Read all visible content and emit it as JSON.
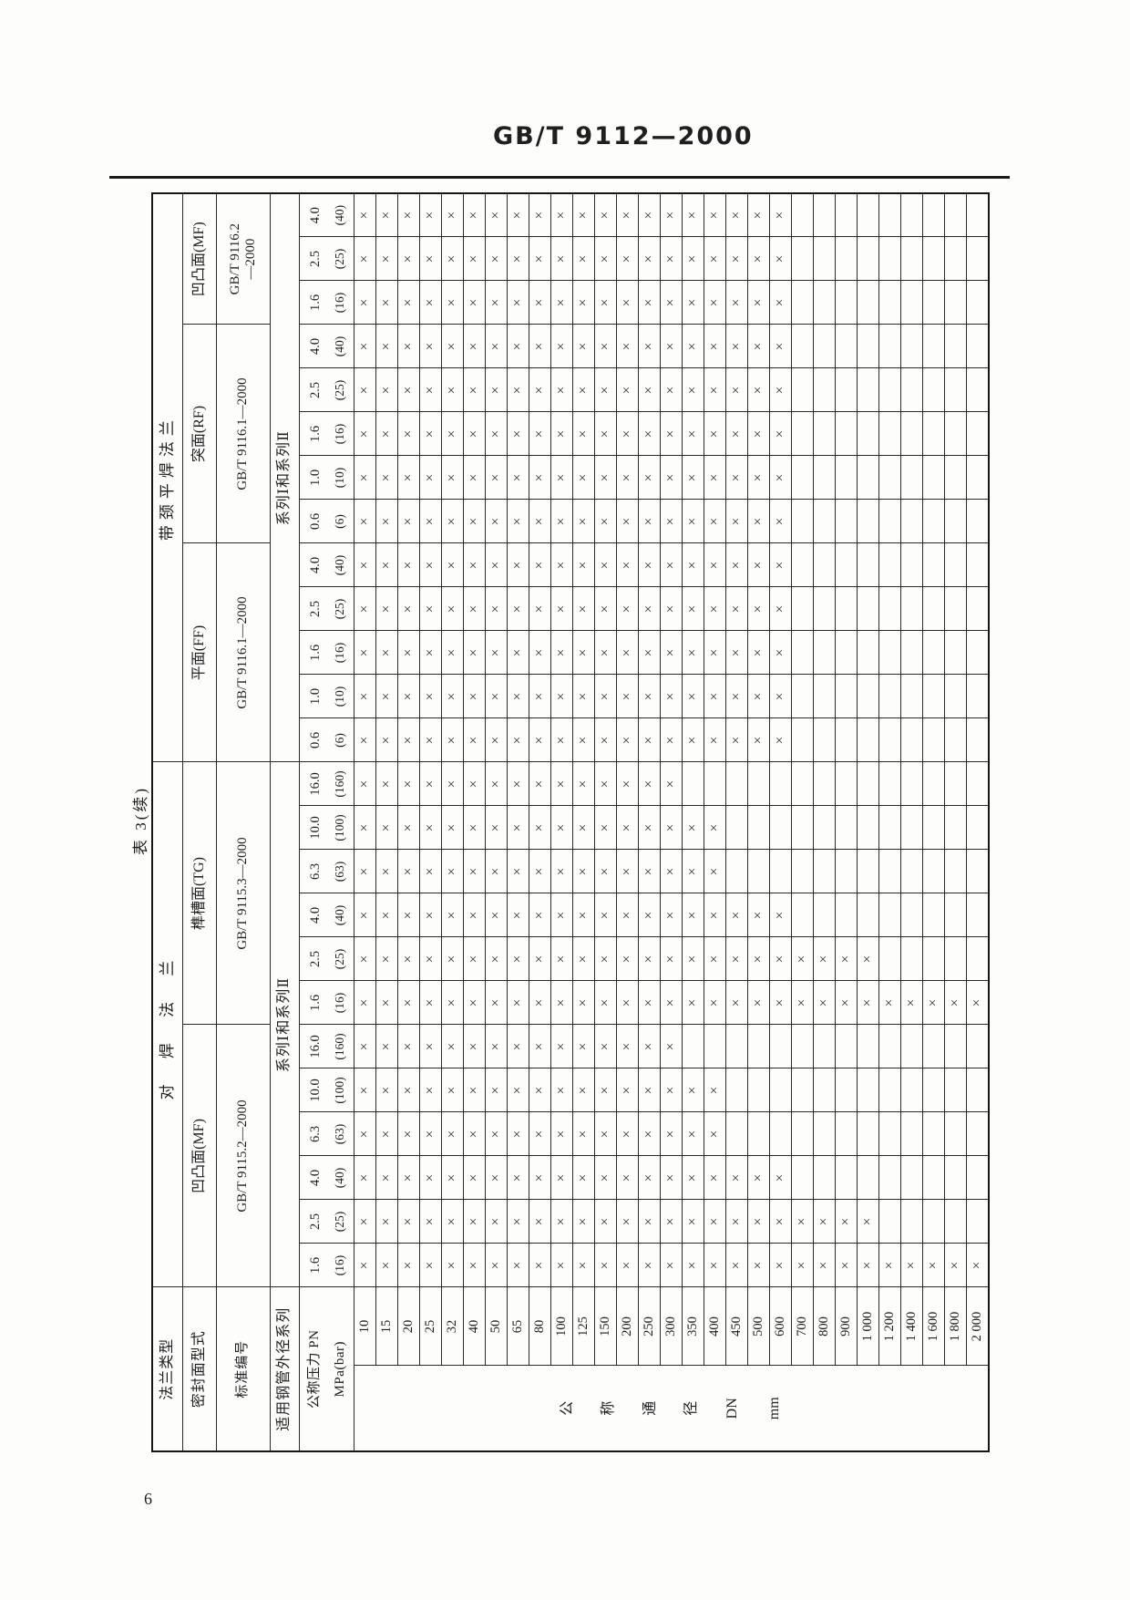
{
  "page": {
    "header_title": "GB/T 9112—2000",
    "table_caption": "表 3(续)",
    "page_number": "6"
  },
  "table": {
    "corner_labels": {
      "flange_type": "法兰类型",
      "sealing_face": "密封面型式",
      "standard_no": "标准编号",
      "pipe_od_series": "适用钢管外径系列",
      "nominal_pressure": "公称压力 PN",
      "pressure_unit": "MPa(bar)"
    },
    "dn_column_header": [
      "公",
      "称",
      "通",
      "径",
      "DN",
      "mm"
    ],
    "cross_mark": "×",
    "groups": [
      {
        "label": "对 焊 法 兰",
        "series_note": "系列Ⅰ和系列Ⅱ",
        "faces": [
          {
            "label": "凹凸面(MF)",
            "standard": "GB/T 9115.2—2000",
            "columns": [
              {
                "pn": "1.6",
                "bar": "(16)",
                "max_dn": 2000
              },
              {
                "pn": "2.5",
                "bar": "(25)",
                "max_dn": 1000
              },
              {
                "pn": "4.0",
                "bar": "(40)",
                "max_dn": 600
              },
              {
                "pn": "6.3",
                "bar": "(63)",
                "max_dn": 400
              },
              {
                "pn": "10.0",
                "bar": "(100)",
                "max_dn": 400
              },
              {
                "pn": "16.0",
                "bar": "(160)",
                "max_dn": 300
              }
            ]
          },
          {
            "label": "榫槽面(TG)",
            "standard": "GB/T 9115.3—2000",
            "columns": [
              {
                "pn": "1.6",
                "bar": "(16)",
                "max_dn": 2000
              },
              {
                "pn": "2.5",
                "bar": "(25)",
                "max_dn": 1000
              },
              {
                "pn": "4.0",
                "bar": "(40)",
                "max_dn": 600
              },
              {
                "pn": "6.3",
                "bar": "(63)",
                "max_dn": 400
              },
              {
                "pn": "10.0",
                "bar": "(100)",
                "max_dn": 400
              },
              {
                "pn": "16.0",
                "bar": "(160)",
                "max_dn": 300
              }
            ]
          }
        ]
      },
      {
        "label": "带颈平焊法兰",
        "series_note": "系列Ⅰ和系列Ⅱ",
        "faces": [
          {
            "label": "平面(FF)",
            "standard": "GB/T 9116.1—2000",
            "columns": [
              {
                "pn": "0.6",
                "bar": "(6)",
                "max_dn": 600
              },
              {
                "pn": "1.0",
                "bar": "(10)",
                "max_dn": 600
              },
              {
                "pn": "1.6",
                "bar": "(16)",
                "max_dn": 600
              },
              {
                "pn": "2.5",
                "bar": "(25)",
                "max_dn": 600
              },
              {
                "pn": "4.0",
                "bar": "(40)",
                "max_dn": 600
              }
            ]
          },
          {
            "label": "突面(RF)",
            "standard": "GB/T 9116.1—2000",
            "columns": [
              {
                "pn": "0.6",
                "bar": "(6)",
                "max_dn": 600
              },
              {
                "pn": "1.0",
                "bar": "(10)",
                "max_dn": 600
              },
              {
                "pn": "1.6",
                "bar": "(16)",
                "max_dn": 600
              },
              {
                "pn": "2.5",
                "bar": "(25)",
                "max_dn": 600
              },
              {
                "pn": "4.0",
                "bar": "(40)",
                "max_dn": 600
              }
            ]
          },
          {
            "label": "凹凸面(MF)",
            "standard": "GB/T 9116.2\n—2000",
            "columns": [
              {
                "pn": "1.6",
                "bar": "(16)",
                "max_dn": 600
              },
              {
                "pn": "2.5",
                "bar": "(25)",
                "max_dn": 600
              },
              {
                "pn": "4.0",
                "bar": "(40)",
                "max_dn": 600
              }
            ]
          }
        ]
      }
    ],
    "dn_rows": [
      {
        "label": "10",
        "value": 10
      },
      {
        "label": "15",
        "value": 15
      },
      {
        "label": "20",
        "value": 20
      },
      {
        "label": "25",
        "value": 25
      },
      {
        "label": "32",
        "value": 32
      },
      {
        "label": "40",
        "value": 40
      },
      {
        "label": "50",
        "value": 50
      },
      {
        "label": "65",
        "value": 65
      },
      {
        "label": "80",
        "value": 80
      },
      {
        "label": "100",
        "value": 100
      },
      {
        "label": "125",
        "value": 125
      },
      {
        "label": "150",
        "value": 150
      },
      {
        "label": "200",
        "value": 200
      },
      {
        "label": "250",
        "value": 250
      },
      {
        "label": "300",
        "value": 300
      },
      {
        "label": "350",
        "value": 350
      },
      {
        "label": "400",
        "value": 400
      },
      {
        "label": "450",
        "value": 450
      },
      {
        "label": "500",
        "value": 500
      },
      {
        "label": "600",
        "value": 600
      },
      {
        "label": "700",
        "value": 700
      },
      {
        "label": "800",
        "value": 800
      },
      {
        "label": "900",
        "value": 900
      },
      {
        "label": "1 000",
        "value": 1000
      },
      {
        "label": "1 200",
        "value": 1200
      },
      {
        "label": "1 400",
        "value": 1400
      },
      {
        "label": "1 600",
        "value": 1600
      },
      {
        "label": "1 800",
        "value": 1800
      },
      {
        "label": "2 000",
        "value": 2000
      }
    ]
  }
}
